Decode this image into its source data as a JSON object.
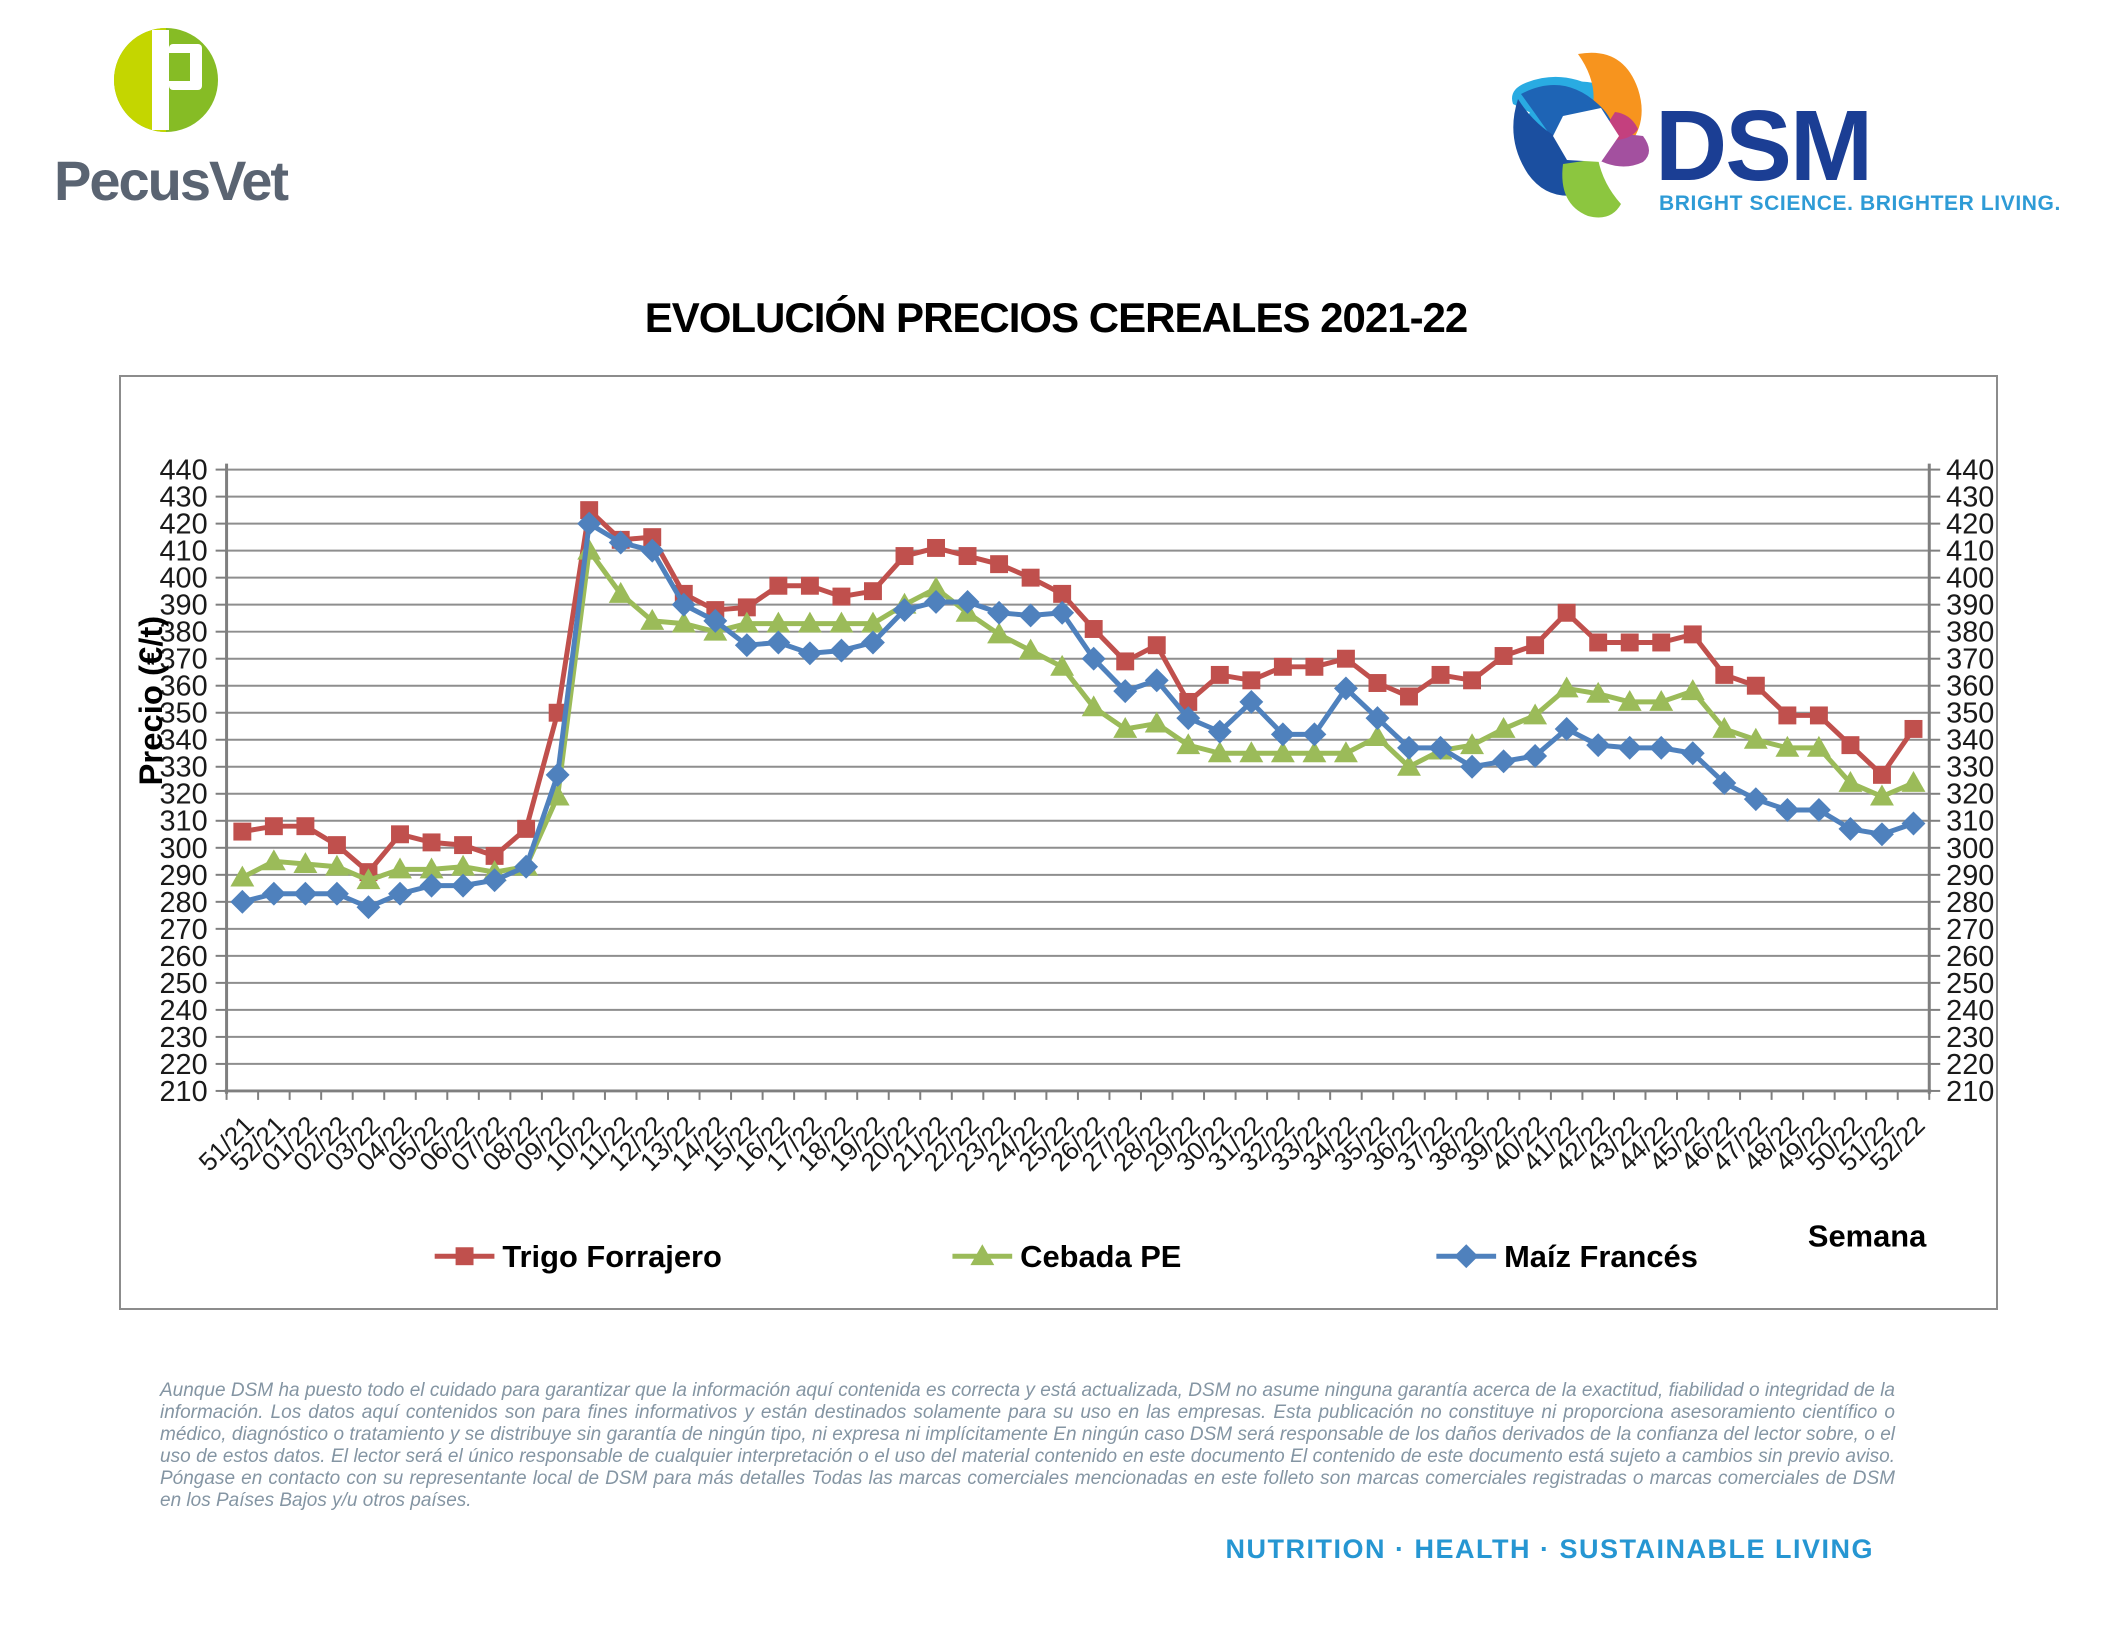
{
  "header": {
    "pecusvet": {
      "monogram": "P",
      "wordmark": "PecusVet"
    },
    "dsm": {
      "wordmark": "DSM",
      "tagline": "BRIGHT SCIENCE. BRIGHTER LIVING."
    }
  },
  "title": "EVOLUCIÓN PRECIOS CEREALES 2021-22",
  "chart_data": {
    "type": "line",
    "title": "EVOLUCIÓN PRECIOS CEREALES 2021-22",
    "ylabel": "Precio (€/t)",
    "xlabel": "Semana",
    "ylim": [
      210,
      440
    ],
    "ytick_step": 10,
    "grid": true,
    "legend_position": "bottom",
    "categories": [
      "51/21",
      "52/21",
      "01/22",
      "02/22",
      "03/22",
      "04/22",
      "05/22",
      "06/22",
      "07/22",
      "08/22",
      "09/22",
      "10/22",
      "11/22",
      "12/22",
      "13/22",
      "14/22",
      "15/22",
      "16/22",
      "17/22",
      "18/22",
      "19/22",
      "20/22",
      "21/22",
      "22/22",
      "23/22",
      "24/22",
      "25/22",
      "26/22",
      "27/22",
      "28/22",
      "29/22",
      "30/22",
      "31/22",
      "32/22",
      "33/22",
      "34/22",
      "35/22",
      "36/22",
      "37/22",
      "38/22",
      "39/22",
      "40/22",
      "41/22",
      "42/22",
      "43/22",
      "44/22",
      "45/22",
      "46/22",
      "47/22",
      "48/22",
      "49/22",
      "50/22",
      "51/22",
      "52/22"
    ],
    "series": [
      {
        "name": "Trigo Forrajero",
        "color": "#c0504d",
        "marker": "square",
        "values": [
          306,
          308,
          308,
          301,
          291,
          305,
          302,
          301,
          297,
          307,
          350,
          425,
          414,
          415,
          394,
          388,
          389,
          397,
          397,
          393,
          395,
          408,
          411,
          408,
          405,
          400,
          394,
          381,
          369,
          375,
          354,
          364,
          362,
          367,
          367,
          370,
          361,
          356,
          364,
          362,
          371,
          375,
          387,
          376,
          376,
          376,
          379,
          364,
          360,
          349,
          349,
          338,
          327,
          344
        ]
      },
      {
        "name": "Cebada PE",
        "color": "#9bbb59",
        "marker": "triangle",
        "values": [
          289,
          295,
          294,
          293,
          288,
          292,
          292,
          293,
          291,
          293,
          319,
          410,
          394,
          384,
          383,
          380,
          383,
          383,
          383,
          383,
          383,
          390,
          396,
          387,
          379,
          373,
          367,
          352,
          344,
          346,
          338,
          335,
          335,
          335,
          335,
          335,
          341,
          330,
          336,
          338,
          344,
          349,
          359,
          357,
          354,
          354,
          358,
          344,
          340,
          337,
          337,
          324,
          319,
          324
        ]
      },
      {
        "name": "Maíz Francés",
        "color": "#4f81bd",
        "marker": "diamond",
        "values": [
          280,
          283,
          283,
          283,
          278,
          283,
          286,
          286,
          288,
          293,
          327,
          420,
          413,
          410,
          390,
          384,
          375,
          376,
          372,
          373,
          376,
          388,
          391,
          391,
          387,
          386,
          387,
          370,
          358,
          362,
          348,
          343,
          354,
          342,
          342,
          359,
          348,
          337,
          337,
          330,
          332,
          334,
          344,
          338,
          337,
          337,
          335,
          324,
          318,
          314,
          314,
          307,
          305,
          309
        ]
      }
    ]
  },
  "footer": {
    "disclaimer": "Aunque DSM ha puesto todo el cuidado para garantizar que la información aquí contenida es correcta y está actualizada, DSM no asume ninguna garantía acerca de la exactitud, fiabilidad o integridad de la información. Los datos aquí contenidos son para fines informativos y están destinados solamente para su uso en las empresas. Esta publicación no constituye ni proporciona asesoramiento científico o médico, diagnóstico o tratamiento y se distribuye sin garantía de ningún tipo, ni expresa ni implícitamente En ningún caso DSM será responsable de los daños derivados de la confianza del lector sobre, o el uso de estos datos. El lector será el único responsable de cualquier interpretación o el uso del material contenido en este documento El contenido de este documento está sujeto a cambios sin previo aviso. Póngase en contacto con su representante local de DSM para más detalles Todas las marcas comerciales mencionadas en este folleto son marcas comerciales registradas o marcas comerciales de DSM en los Países Bajos y/u otros países.",
    "tagline": "NUTRITION · HEALTH · SUSTAINABLE LIVING"
  },
  "colors": {
    "trigo": "#c0504d",
    "cebada": "#9bbb59",
    "maiz": "#4f81bd",
    "gridline": "#8e8e8e",
    "axis": "#7f7f7f",
    "frame": "#8c8c8c",
    "tick_label": "#1a1a1a",
    "dsm_blue": "#1b3e94",
    "dsm_light_blue": "#2e9bd6",
    "pecusvet_green_light": "#c4d600",
    "pecusvet_green_dark": "#86bc25",
    "pecusvet_gray": "#5a6472",
    "disclaimer_text": "#8495a3"
  }
}
